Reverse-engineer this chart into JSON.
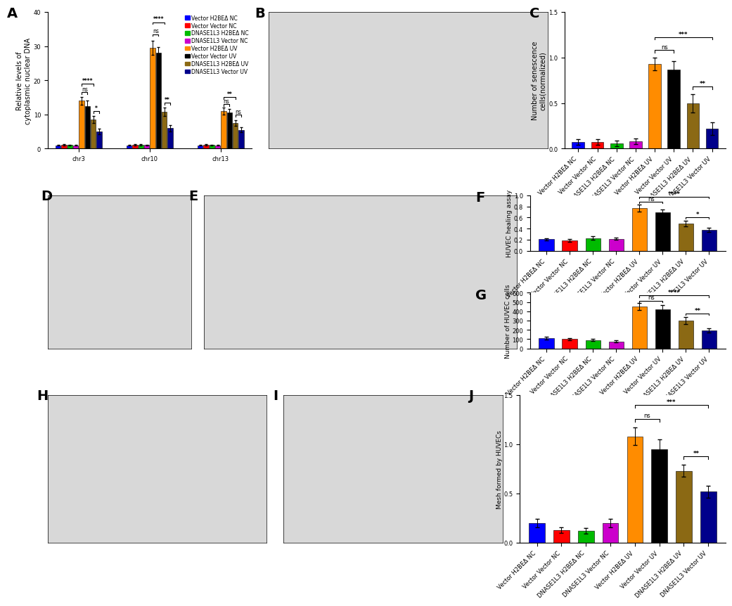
{
  "panel_A": {
    "ylabel": "Relative levels of\ncytoplasmic nuclear DNA",
    "groups": [
      "chr3",
      "chr10",
      "chr13"
    ],
    "bar_colors": [
      "#0000FF",
      "#FF0000",
      "#00BB00",
      "#CC00CC",
      "#FF8C00",
      "#000000",
      "#8B6914",
      "#00008B"
    ],
    "legend_labels": [
      "Vector H2BEΔ NC",
      "Vector Vector NC",
      "DNASE1L3 H2BEΔ NC",
      "DNASE1L3 Vector NC",
      "Vector H2BEΔ UV",
      "Vector Vector UV",
      "DNASE1L3 H2BEΔ UV",
      "DNASE1L3 Vector UV"
    ],
    "values": {
      "chr3": [
        1.0,
        1.1,
        1.05,
        1.0,
        14.0,
        12.5,
        8.5,
        5.0
      ],
      "chr10": [
        1.0,
        1.1,
        1.2,
        1.05,
        29.5,
        28.0,
        10.8,
        6.0
      ],
      "chr13": [
        1.0,
        1.1,
        1.05,
        1.0,
        11.0,
        10.5,
        7.5,
        5.5
      ]
    },
    "errors": {
      "chr3": [
        0.15,
        0.15,
        0.12,
        0.12,
        1.2,
        1.5,
        1.0,
        0.8
      ],
      "chr10": [
        0.12,
        0.15,
        0.2,
        0.12,
        2.0,
        1.8,
        1.2,
        0.9
      ],
      "chr13": [
        0.12,
        0.12,
        0.12,
        0.12,
        1.0,
        1.2,
        0.9,
        0.7
      ]
    },
    "ylim": [
      0,
      40
    ],
    "yticks": [
      0,
      10,
      20,
      30,
      40
    ]
  },
  "panel_C": {
    "ylabel": "Number of senescence\ncells(normalized)",
    "bar_colors": [
      "#0000FF",
      "#FF0000",
      "#00BB00",
      "#CC00CC",
      "#FF8C00",
      "#000000",
      "#8B6914",
      "#00008B"
    ],
    "categories": [
      "Vector H2BEΔ NC",
      "Vector Vector NC",
      "DNASE1L3 H2BEΔ NC",
      "DNASE1L3 Vector NC",
      "Vector H2BEΔ UV",
      "Vector Vector UV",
      "DNASE1L3 H2BEΔ UV",
      "DNASE1L3 Vector UV"
    ],
    "values": [
      0.07,
      0.07,
      0.06,
      0.08,
      0.93,
      0.87,
      0.5,
      0.22
    ],
    "errors": [
      0.03,
      0.03,
      0.03,
      0.03,
      0.07,
      0.09,
      0.1,
      0.07
    ],
    "ylim": [
      0,
      1.5
    ],
    "yticks": [
      0.0,
      0.5,
      1.0,
      1.5
    ]
  },
  "panel_F": {
    "ylabel": "HUVEC healing assay",
    "bar_colors": [
      "#0000FF",
      "#FF0000",
      "#00BB00",
      "#CC00CC",
      "#FF8C00",
      "#000000",
      "#8B6914",
      "#00008B"
    ],
    "categories": [
      "Vector H2BEΔ NC",
      "Vector Vector NC",
      "DNASE1L3 H2BEΔ NC",
      "DNASE1L3 Vector NC",
      "Vector H2BEΔ UV",
      "Vector Vector UV",
      "DNASE1L3 H2BEΔ UV",
      "DNASE1L3 Vector UV"
    ],
    "values": [
      0.21,
      0.19,
      0.23,
      0.22,
      0.77,
      0.69,
      0.49,
      0.38
    ],
    "errors": [
      0.02,
      0.02,
      0.03,
      0.02,
      0.06,
      0.05,
      0.05,
      0.04
    ],
    "ylim": [
      0,
      1.0
    ],
    "yticks": [
      0.0,
      0.2,
      0.4,
      0.6,
      0.8,
      1.0
    ]
  },
  "panel_G": {
    "ylabel": "Number of HUVEC cells",
    "bar_colors": [
      "#0000FF",
      "#FF0000",
      "#00BB00",
      "#CC00CC",
      "#FF8C00",
      "#000000",
      "#8B6914",
      "#00008B"
    ],
    "categories": [
      "Vector H2BEΔ NC",
      "Vector Vector NC",
      "DNASE1L3 H2BEΔ NC",
      "DNASE1L3 Vector NC",
      "Vector H2BEΔ UV",
      "Vector Vector UV",
      "DNASE1L3 H2BEΔ UV",
      "DNASE1L3 Vector UV"
    ],
    "values": [
      110,
      100,
      90,
      75,
      450,
      420,
      300,
      195
    ],
    "errors": [
      15,
      12,
      10,
      10,
      40,
      45,
      35,
      20
    ],
    "ylim": [
      0,
      600
    ],
    "yticks": [
      0,
      100,
      200,
      300,
      400,
      500,
      600
    ]
  },
  "panel_J": {
    "ylabel": "Mesh formed by HUVECs",
    "bar_colors": [
      "#0000FF",
      "#FF0000",
      "#00BB00",
      "#CC00CC",
      "#FF8C00",
      "#000000",
      "#8B6914",
      "#00008B"
    ],
    "categories": [
      "Vector H2BEΔ NC",
      "Vector Vector NC",
      "DNASE1L3 H2BEΔ NC",
      "DNASE1L3 Vector NC",
      "Vector H2BEΔ UV",
      "Vector Vector UV",
      "DNASE1L3 H2BEΔ UV",
      "DNASE1L3 Vector UV"
    ],
    "values": [
      0.2,
      0.13,
      0.12,
      0.2,
      1.08,
      0.95,
      0.73,
      0.52
    ],
    "errors": [
      0.04,
      0.03,
      0.03,
      0.04,
      0.09,
      0.1,
      0.06,
      0.06
    ],
    "ylim": [
      0,
      1.5
    ],
    "yticks": [
      0.0,
      0.5,
      1.0,
      1.5
    ]
  },
  "bg": "#FFFFFF",
  "img_bg": "#D8D8D8",
  "panel_letters_fontsize": 14,
  "axis_label_fontsize": 7,
  "tick_fontsize": 6,
  "sig_fontsize": 6,
  "legend_fontsize": 5.5
}
